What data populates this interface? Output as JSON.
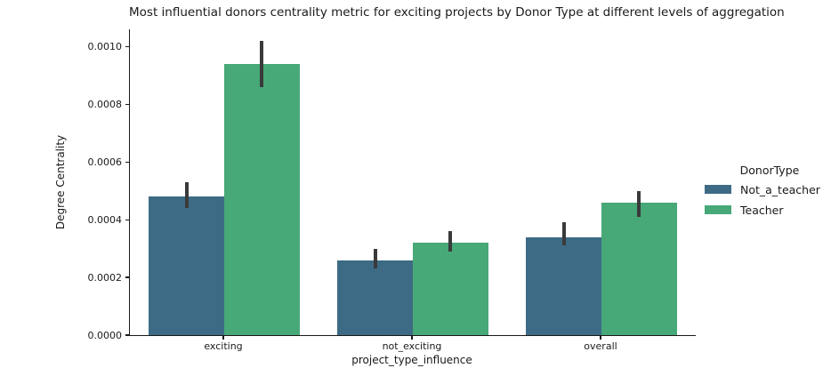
{
  "chart_data": {
    "type": "bar",
    "title": "Most influential donors centrality metric for exciting projects by Donor Type at different levels of aggregation",
    "xlabel": "project_type_influence",
    "ylabel": "Degree Centrality",
    "categories": [
      "exciting",
      "not_exciting",
      "overall"
    ],
    "series": [
      {
        "name": "Not_a_teacher",
        "color": "#3d6b85",
        "values": [
          0.00048,
          0.00026,
          0.00034
        ],
        "ci_low": [
          0.00044,
          0.00023,
          0.00031
        ],
        "ci_high": [
          0.00053,
          0.0003,
          0.00039
        ]
      },
      {
        "name": "Teacher",
        "color": "#47a878",
        "values": [
          0.00094,
          0.00032,
          0.00046
        ],
        "ci_low": [
          0.00086,
          0.00029,
          0.00041
        ],
        "ci_high": [
          0.00102,
          0.00036,
          0.0005
        ]
      }
    ],
    "ylim": [
      0,
      0.00106
    ],
    "yticks": [
      0.0,
      0.0002,
      0.0004,
      0.0006,
      0.0008,
      0.001
    ],
    "ytick_labels": [
      "0.0000",
      "0.0002",
      "0.0004",
      "0.0006",
      "0.0008",
      "0.0010"
    ],
    "legend": {
      "title": "DonorType",
      "position": "right",
      "entries": [
        "Not_a_teacher",
        "Teacher"
      ]
    },
    "errorbar_color": "#3a3a3a",
    "grid": false,
    "bar_group_width_fraction": 0.8
  }
}
